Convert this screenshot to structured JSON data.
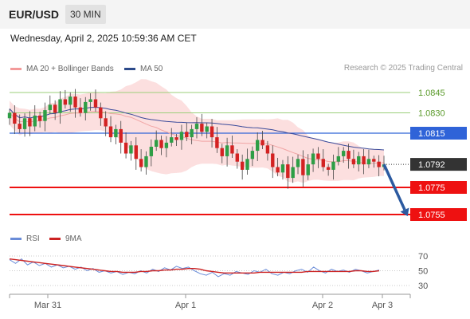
{
  "header": {
    "pair": "EUR/USD",
    "timeframe": "30 MIN"
  },
  "timestamp": "Wednesday, April 2, 2025 10:59:36 AM CET",
  "legend": {
    "bollinger": "MA 20 + Bollinger Bands",
    "ma50": "MA 50",
    "rsi": "RSI",
    "rsi_ma": "9MA"
  },
  "copyright": "Research © 2025 Trading Central",
  "colors": {
    "resistance": "#9bcf7a",
    "pivot": "#2f63d8",
    "support": "#ee1111",
    "bands": "#fbd4d4",
    "ma50": "#3a4a9a",
    "rsi": "#6a8cd8",
    "rsi_ma": "#cc2222",
    "arrow": "#2c5aa0"
  },
  "chart_data": {
    "type": "candlestick",
    "price_levels": [
      {
        "value": 1.0845,
        "label": "1.0845",
        "kind": "resistance"
      },
      {
        "value": 1.083,
        "label": "1.0830",
        "kind": "resistance"
      },
      {
        "value": 1.0815,
        "label": "1.0815",
        "kind": "pivot"
      },
      {
        "value": 1.0792,
        "label": "1.0792",
        "kind": "last"
      },
      {
        "value": 1.0775,
        "label": "1.0775",
        "kind": "support"
      },
      {
        "value": 1.0755,
        "label": "1.0755",
        "kind": "support"
      }
    ],
    "x_ticks": [
      "Mar 31",
      "Apr 1",
      "Apr 2",
      "Apr 3"
    ],
    "rsi_ticks": [
      70,
      50,
      30
    ],
    "forecast": {
      "from": 1.0792,
      "to": 1.0755
    },
    "closes": [
      1.083,
      1.0822,
      1.0818,
      1.0826,
      1.082,
      1.0828,
      1.0824,
      1.0832,
      1.0836,
      1.083,
      1.084,
      1.0836,
      1.0842,
      1.0834,
      1.083,
      1.0838,
      1.084,
      1.0834,
      1.0826,
      1.082,
      1.0812,
      1.0818,
      1.0808,
      1.08,
      1.0806,
      1.0796,
      1.079,
      1.0798,
      1.0805,
      1.081,
      1.0804,
      1.0808,
      1.0812,
      1.081,
      1.0816,
      1.0812,
      1.0818,
      1.0822,
      1.0816,
      1.082,
      1.0812,
      1.0804,
      1.0798,
      1.0806,
      1.08,
      1.0794,
      1.0788,
      1.0796,
      1.0802,
      1.081,
      1.0806,
      1.08,
      1.079,
      1.0786,
      1.0792,
      1.0782,
      1.079,
      1.0796,
      1.0784,
      1.0792,
      1.08,
      1.0796,
      1.079,
      1.0788,
      1.0794,
      1.0798,
      1.0802,
      1.0796,
      1.0792,
      1.0798,
      1.0792,
      1.0796,
      1.0794,
      1.079,
      1.0792
    ],
    "rsi": [
      65,
      60,
      66,
      58,
      62,
      57,
      60,
      55,
      58,
      54,
      56,
      52,
      55,
      50,
      53,
      48,
      50,
      47,
      49,
      45,
      48,
      46,
      50,
      47,
      52,
      49,
      54,
      51,
      56,
      53,
      55,
      50,
      46,
      44,
      48,
      42,
      46,
      44,
      49,
      47,
      45,
      50,
      48,
      52,
      46,
      44,
      48,
      46,
      50,
      52,
      48,
      55,
      50,
      47,
      52,
      49,
      51,
      48,
      52,
      50,
      47,
      49,
      51
    ],
    "rsi_ma": [
      66,
      65,
      64,
      63,
      62,
      61,
      60,
      59,
      58,
      57,
      56,
      55,
      54,
      53,
      52,
      51,
      50,
      49,
      49,
      48,
      48,
      48,
      49,
      49,
      50,
      50,
      51,
      51,
      52,
      52,
      53,
      53,
      52,
      50,
      49,
      48,
      47,
      47,
      47,
      47,
      47,
      47,
      48,
      48,
      48,
      48,
      48,
      48,
      48,
      48,
      49,
      49,
      49,
      49,
      49,
      49,
      49,
      49,
      50,
      50,
      49,
      49,
      50
    ]
  }
}
